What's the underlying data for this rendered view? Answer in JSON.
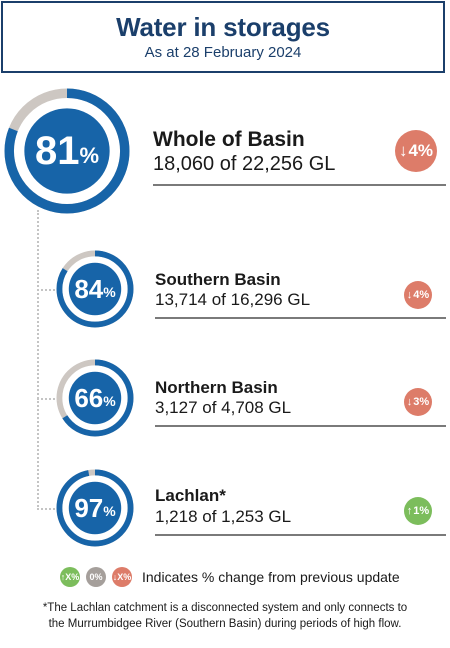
{
  "header": {
    "title": "Water in storages",
    "subtitle": "As at 28 February 2024"
  },
  "colors": {
    "ring_fill": "#1764a8",
    "ring_track": "#cdc7c2",
    "ring_inner": "#1764a8",
    "header_text": "#1b3f6b",
    "decrease_badge": "#dd7c69",
    "increase_badge": "#7cbd5c",
    "no_change_badge": "#a59f9b"
  },
  "items": [
    {
      "name": "Whole of Basin",
      "percent": "81",
      "percent_symbol": "%",
      "fill_fraction": 0.81,
      "volume": "18,060 of 22,256 GL",
      "change_direction": "down",
      "change_arrow": "↓",
      "change_value": "4%"
    },
    {
      "name": "Southern Basin",
      "percent": "84",
      "percent_symbol": "%",
      "fill_fraction": 0.84,
      "volume": "13,714 of 16,296 GL",
      "change_direction": "down",
      "change_arrow": "↓",
      "change_value": "4%"
    },
    {
      "name": "Northern Basin",
      "percent": "66",
      "percent_symbol": "%",
      "fill_fraction": 0.66,
      "volume": "3,127 of 4,708 GL",
      "change_direction": "down",
      "change_arrow": "↓",
      "change_value": "3%"
    },
    {
      "name": "Lachlan*",
      "percent": "97",
      "percent_symbol": "%",
      "fill_fraction": 0.97,
      "volume": "1,218 of 1,253 GL",
      "change_direction": "up",
      "change_arrow": "↑",
      "change_value": "1%"
    }
  ],
  "legend": {
    "increase_badge": "↑X%",
    "no_change_badge": "0%",
    "decrease_badge": "↓X%",
    "text": "Indicates % change from previous update"
  },
  "footnote": {
    "line1": "*The Lachlan catchment is a disconnected system and only connects to",
    "line2": "the Murrumbidgee River (Southern Basin) during periods of high flow."
  }
}
